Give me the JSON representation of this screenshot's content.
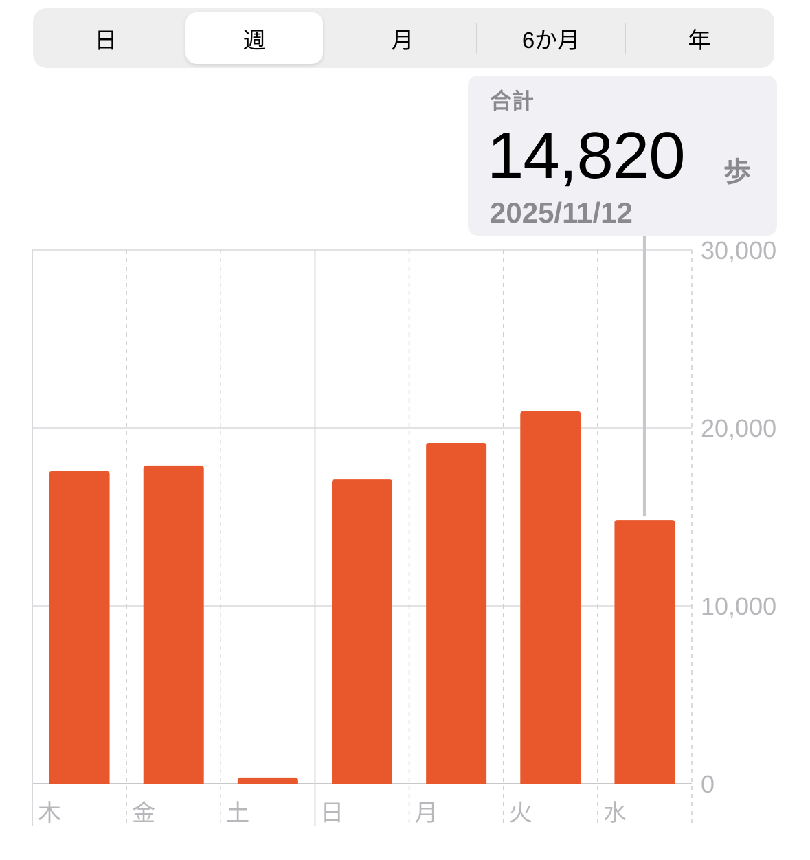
{
  "segments": [
    {
      "label": "日"
    },
    {
      "label": "週",
      "selected": true
    },
    {
      "label": "月"
    },
    {
      "label": "6か月"
    },
    {
      "label": "年"
    }
  ],
  "tooltip": {
    "label": "合計",
    "value": "14,820",
    "unit": "歩",
    "date": "2025/11/12"
  },
  "colors": {
    "bar": "#e9582c",
    "grid": "#e2e2e4",
    "axis_label": "#b8b8bc"
  },
  "chart_data": {
    "type": "bar",
    "categories": [
      "木",
      "金",
      "土",
      "日",
      "月",
      "火",
      "水"
    ],
    "values": [
      17570,
      17880,
      350,
      17100,
      19150,
      20930,
      14820
    ],
    "ylim": [
      0,
      30000
    ],
    "yticks": [
      {
        "v": 0,
        "label": "0"
      },
      {
        "v": 10000,
        "label": "10,000"
      },
      {
        "v": 20000,
        "label": "20,000"
      },
      {
        "v": 30000,
        "label": "30,000"
      }
    ],
    "y_axis_position": "right",
    "grid": true,
    "highlighted_category": "水"
  }
}
